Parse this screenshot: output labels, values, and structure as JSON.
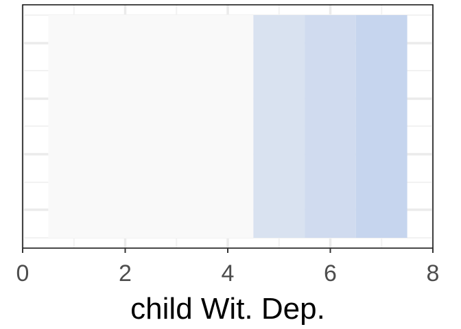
{
  "chart_data": {
    "type": "heatmap",
    "xlabel": "child Wit. Dep.",
    "xlim": [
      0,
      8
    ],
    "xticks": [
      "0",
      "2",
      "4",
      "6",
      "8"
    ],
    "ylabel": "",
    "grid": true,
    "tiles": [
      {
        "x_start": 0.5,
        "x_end": 4.5,
        "color": "#f9f9f9"
      },
      {
        "x_start": 4.5,
        "x_end": 5.5,
        "color": "#d9e2f0"
      },
      {
        "x_start": 5.5,
        "x_end": 6.5,
        "color": "#d0dbef"
      },
      {
        "x_start": 6.5,
        "x_end": 7.5,
        "color": "#c6d5ee"
      }
    ],
    "colors": {
      "panel_border": "#1a1a1a",
      "grid_major": "#ebebeb",
      "grid_minor": "#f2f2f2",
      "tick": "#333333"
    }
  }
}
